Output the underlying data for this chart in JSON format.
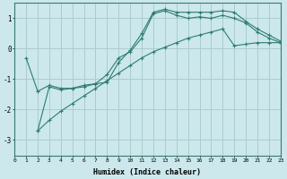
{
  "xlabel": "Humidex (Indice chaleur)",
  "bg_color": "#cce8ec",
  "grid_color": "#aacccc",
  "line_color": "#2e7d6e",
  "xlim": [
    0,
    23
  ],
  "ylim": [
    -3.5,
    1.5
  ],
  "yticks": [
    -3,
    -2,
    -1,
    0,
    1
  ],
  "xticks": [
    0,
    1,
    2,
    3,
    4,
    5,
    6,
    7,
    8,
    9,
    10,
    11,
    12,
    13,
    14,
    15,
    16,
    17,
    18,
    19,
    20,
    21,
    22,
    23
  ],
  "series": {
    "line1": {
      "x": [
        1,
        2,
        3,
        4,
        5,
        6,
        7,
        8,
        9,
        10,
        11,
        12,
        13,
        14,
        15,
        16,
        17,
        18,
        19,
        20,
        21,
        22,
        23
      ],
      "y": [
        -0.3,
        -1.4,
        -1.2,
        -1.3,
        -1.3,
        -1.2,
        -1.15,
        -1.1,
        -0.45,
        -0.05,
        0.5,
        1.2,
        1.3,
        1.2,
        1.2,
        1.2,
        1.2,
        1.25,
        1.2,
        0.9,
        0.65,
        0.45,
        0.25
      ]
    },
    "line2": {
      "x": [
        2,
        3,
        4,
        5,
        6,
        7,
        8,
        9,
        10,
        11,
        12,
        13,
        14,
        15,
        16,
        17,
        18,
        19,
        20,
        21,
        22,
        23
      ],
      "y": [
        -2.7,
        -1.25,
        -1.35,
        -1.3,
        -1.25,
        -1.15,
        -0.85,
        -0.3,
        -0.1,
        0.35,
        1.15,
        1.25,
        1.1,
        1.0,
        1.05,
        1.0,
        1.1,
        1.0,
        0.85,
        0.55,
        0.35,
        0.2
      ]
    },
    "line3": {
      "x": [
        2,
        3,
        4,
        5,
        6,
        7,
        8,
        9,
        10,
        11,
        12,
        13,
        14,
        15,
        16,
        17,
        18,
        19,
        20,
        21,
        22,
        23
      ],
      "y": [
        -2.7,
        -2.35,
        -2.05,
        -1.8,
        -1.55,
        -1.3,
        -1.05,
        -0.8,
        -0.55,
        -0.3,
        -0.1,
        0.05,
        0.2,
        0.35,
        0.45,
        0.55,
        0.65,
        0.1,
        0.15,
        0.2,
        0.2,
        0.2
      ]
    }
  }
}
